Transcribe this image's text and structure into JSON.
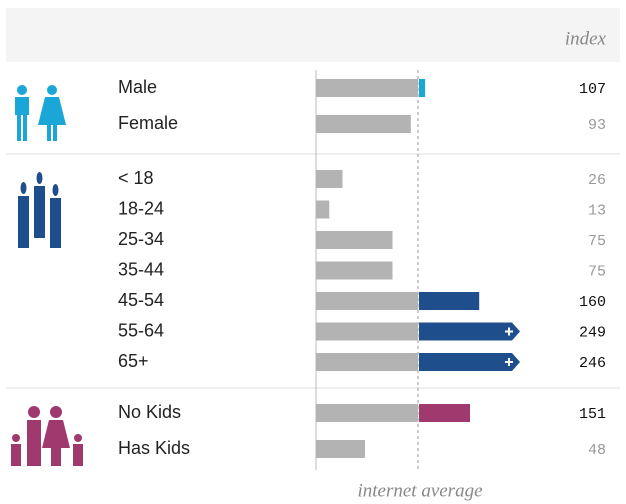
{
  "chart_data": {
    "type": "bar",
    "header": "index",
    "footer": "internet average",
    "xlim": [
      0,
      200
    ],
    "reference": 100,
    "groups": [
      {
        "color": "#1aa6d6",
        "rows": [
          {
            "label": "Male",
            "value": 107
          },
          {
            "label": "Female",
            "value": 93
          }
        ]
      },
      {
        "color": "#1f4e8c",
        "rows": [
          {
            "label": "< 18",
            "value": 26
          },
          {
            "label": "18-24",
            "value": 13
          },
          {
            "label": "25-34",
            "value": 75
          },
          {
            "label": "35-44",
            "value": 75
          },
          {
            "label": "45-54",
            "value": 160
          },
          {
            "label": "55-64",
            "value": 249
          },
          {
            "label": "65+",
            "value": 246
          }
        ]
      },
      {
        "color": "#a03a6e",
        "rows": [
          {
            "label": "No Kids",
            "value": 151
          },
          {
            "label": "Has Kids",
            "value": 48
          }
        ]
      }
    ]
  }
}
